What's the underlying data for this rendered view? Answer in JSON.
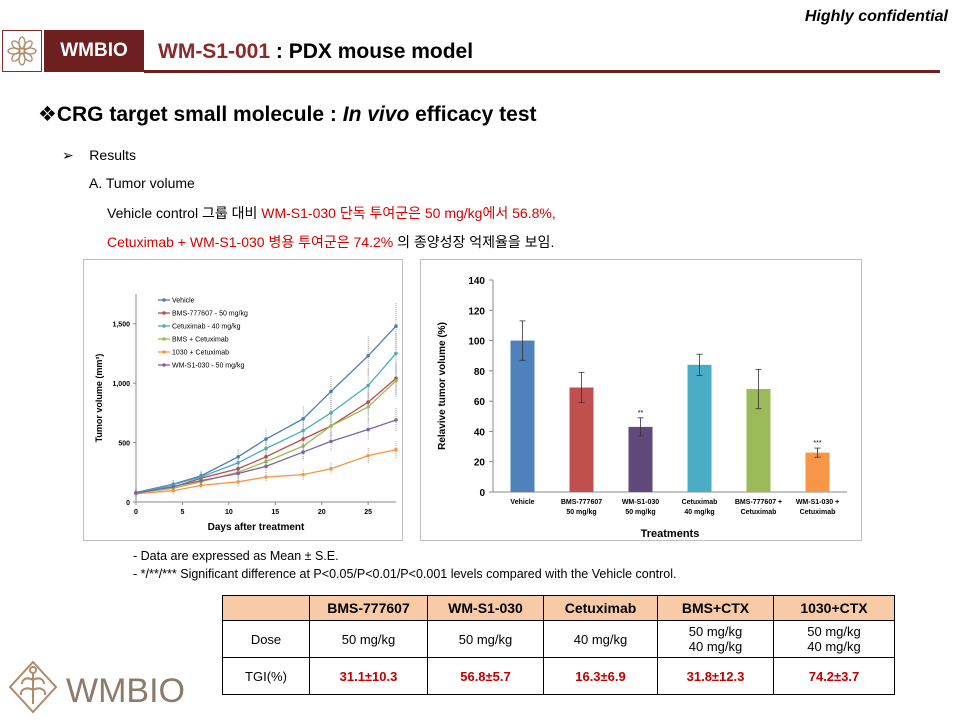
{
  "header": {
    "confidential": "Highly confidential",
    "brand": "WMBIO",
    "title_code": "WM-S1-001",
    "title_rest": " : PDX mouse model"
  },
  "section": {
    "bullet": "❖",
    "title_prefix": "CRG target small molecule : ",
    "title_italic": "In vivo",
    "title_suffix": " efficacy test"
  },
  "results": {
    "bullet": "➢",
    "label": "Results",
    "sub": "A. Tumor volume",
    "line1_black1": "Vehicle control 그룹 대비 ",
    "line1_red": "WM-S1-030 단독 투여군은  50 mg/kg에서 56.8%,",
    "line2_red": "Cetuximab + WM-S1-030 병용 투여군은 74.2%",
    "line2_black": " 의 종양성장 억제율을 보임."
  },
  "notes": [
    "-   Data are expressed as Mean ± S.E.",
    "-   */**/*** Significant difference  at P<0.05/P<0.01/P<0.001 levels compared with the Vehicle control."
  ],
  "table": {
    "headers": [
      "",
      "BMS-777607",
      "WM-S1-030",
      "Cetuximab",
      "BMS+CTX",
      "1030+CTX"
    ],
    "dose_label": "Dose",
    "dose": [
      "50 mg/kg",
      "50 mg/kg",
      "40 mg/kg",
      "50 mg/kg",
      "50 mg/kg"
    ],
    "dose2": [
      "",
      "",
      "",
      "40 mg/kg",
      "40 mg/kg"
    ],
    "tgi_label": "TGI(%)",
    "tgi": [
      "31.1±10.3",
      "56.8±5.7",
      "16.3±6.9",
      "31.8±12.3",
      "74.2±3.7"
    ]
  },
  "footer": {
    "logo_text": "WMBIO"
  },
  "colors": {
    "brand": "#6e1f1f",
    "highlight": "#d80000",
    "table_header": "#f8cba6"
  },
  "chart_data": [
    {
      "type": "line",
      "xlabel": "Days after treatment",
      "ylabel": "Tumor volume (mm³)",
      "xlim": [
        0,
        28
      ],
      "ylim": [
        0,
        1750
      ],
      "xticks": [
        0,
        5,
        10,
        15,
        20,
        25
      ],
      "yticks": [
        0,
        500,
        1000,
        1500
      ],
      "ytick_labels": [
        "0",
        "500",
        "1,000",
        "1,500"
      ],
      "legend_position": "top-left",
      "x": [
        0,
        4,
        7,
        11,
        14,
        18,
        21,
        25,
        28
      ],
      "series": [
        {
          "name": "Vehicle",
          "color": "#4a7ebb",
          "marker": "diamond",
          "values": [
            80,
            150,
            220,
            380,
            530,
            700,
            930,
            1230,
            1480
          ]
        },
        {
          "name": "BMS-777607 - 50 mg/kg",
          "color": "#be4b48",
          "marker": "square",
          "values": [
            75,
            125,
            200,
            280,
            380,
            530,
            640,
            840,
            1040
          ]
        },
        {
          "name": "Cetuximab - 40 mg/kg",
          "color": "#4bacc6",
          "marker": "triangle",
          "values": [
            75,
            145,
            210,
            330,
            450,
            600,
            750,
            980,
            1250
          ]
        },
        {
          "name": "BMS + Cetuximab",
          "color": "#9bbb59",
          "marker": "x",
          "values": [
            75,
            115,
            170,
            250,
            340,
            470,
            640,
            800,
            1020
          ]
        },
        {
          "name": "1030 + Cetuximab",
          "color": "#f79646",
          "marker": "circle",
          "values": [
            70,
            95,
            140,
            170,
            210,
            230,
            280,
            390,
            440
          ]
        },
        {
          "name": "WM-S1-030 - 50 mg/kg",
          "color": "#8064a2",
          "marker": "star",
          "values": [
            75,
            130,
            180,
            240,
            300,
            420,
            510,
            610,
            690
          ]
        }
      ]
    },
    {
      "type": "bar",
      "xlabel": "Treatments",
      "ylabel": "Relavive tumor volume (%)",
      "ylim": [
        0,
        140
      ],
      "yticks": [
        0,
        20,
        40,
        60,
        80,
        100,
        120,
        140
      ],
      "categories": [
        "Vehicle",
        "BMS-777607\n50 mg/kg",
        "WM-S1-030\n50 mg/kg",
        "Cetuximab\n40 mg/kg",
        "BMS-777607 +\nCetuximab",
        "WM-S1-030 +\nCetuximab"
      ],
      "values": [
        100,
        69,
        43,
        84,
        68,
        26
      ],
      "errors": [
        13,
        10,
        6,
        7,
        13,
        3
      ],
      "significance": [
        "",
        "",
        "**",
        "",
        "",
        "***"
      ],
      "colors": [
        "#4f81bd",
        "#c0504d",
        "#604a7b",
        "#4bacc6",
        "#9bbb59",
        "#f79646"
      ]
    }
  ]
}
